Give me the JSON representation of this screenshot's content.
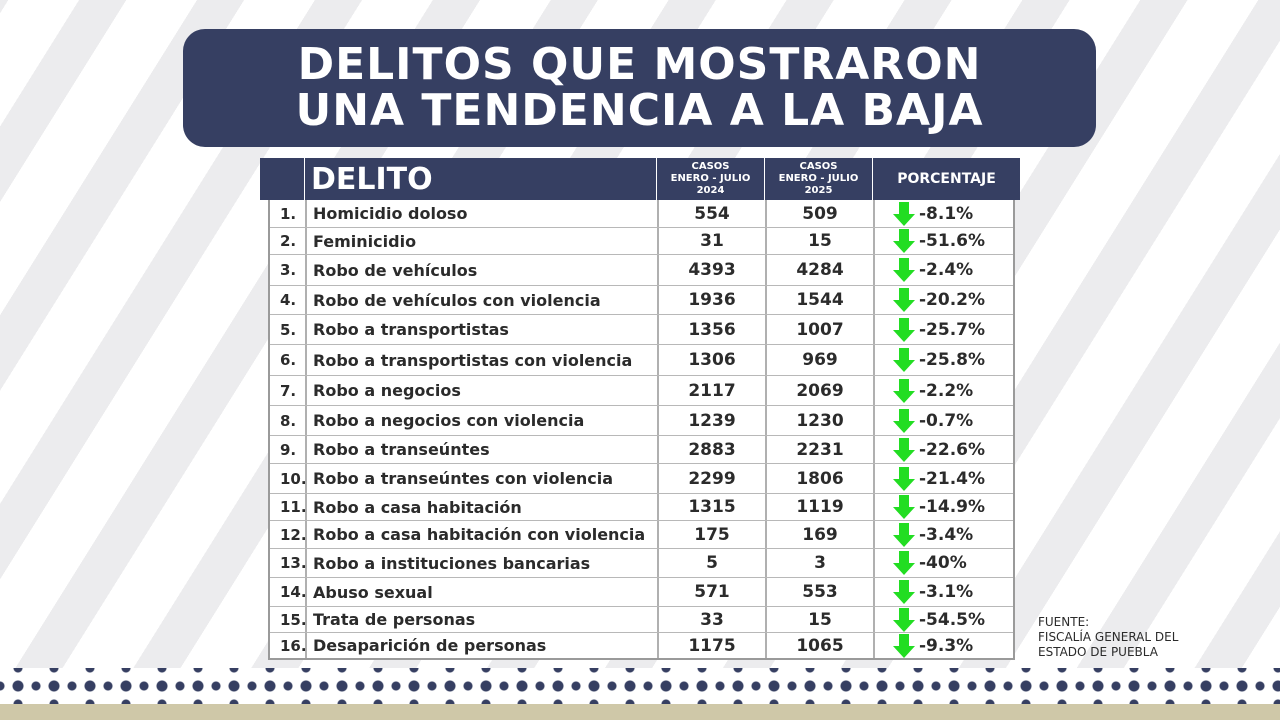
{
  "title": {
    "line1": "DELITOS QUE MOSTRARON",
    "line2": "UNA TENDENCIA A LA BAJA"
  },
  "table": {
    "headers": {
      "delito": "DELITO",
      "casos_2024": "CASOS\nENERO - JULIO\n2024",
      "casos_2025": "CASOS\nENERO - JULIO\n2025",
      "porcentaje": "PORCENTAJE"
    },
    "rows": [
      {
        "num": "1.",
        "name": "Homicidio doloso",
        "y2024": "554",
        "y2025": "509",
        "pct": "-8.1%"
      },
      {
        "num": "2.",
        "name": "Feminicidio",
        "y2024": "31",
        "y2025": "15",
        "pct": "-51.6%"
      },
      {
        "num": "3.",
        "name": "Robo de vehículos",
        "y2024": "4393",
        "y2025": "4284",
        "pct": "-2.4%"
      },
      {
        "num": "4.",
        "name": "Robo de vehículos con violencia",
        "y2024": "1936",
        "y2025": "1544",
        "pct": "-20.2%"
      },
      {
        "num": "5.",
        "name": "Robo a transportistas",
        "y2024": "1356",
        "y2025": "1007",
        "pct": "-25.7%"
      },
      {
        "num": "6.",
        "name": "Robo a transportistas con violencia",
        "y2024": "1306",
        "y2025": "969",
        "pct": "-25.8%"
      },
      {
        "num": "7.",
        "name": "Robo a negocios",
        "y2024": "2117",
        "y2025": "2069",
        "pct": "-2.2%"
      },
      {
        "num": "8.",
        "name": "Robo a negocios con violencia",
        "y2024": "1239",
        "y2025": "1230",
        "pct": "-0.7%"
      },
      {
        "num": "9.",
        "name": "Robo a transeúntes",
        "y2024": "2883",
        "y2025": "2231",
        "pct": "-22.6%"
      },
      {
        "num": "10.",
        "name": "Robo a transeúntes con violencia",
        "y2024": "2299",
        "y2025": "1806",
        "pct": "-21.4%"
      },
      {
        "num": "11.",
        "name": "Robo a casa habitación",
        "y2024": "1315",
        "y2025": "1119",
        "pct": "-14.9%"
      },
      {
        "num": "12.",
        "name": "Robo a casa habitación con violencia",
        "y2024": "175",
        "y2025": "169",
        "pct": "-3.4%"
      },
      {
        "num": "13.",
        "name": "Robo a instituciones bancarias",
        "y2024": "5",
        "y2025": "3",
        "pct": "-40%"
      },
      {
        "num": "14.",
        "name": "Abuso sexual",
        "y2024": "571",
        "y2025": "553",
        "pct": "-3.1%"
      },
      {
        "num": "15.",
        "name": "Trata de personas",
        "y2024": "33",
        "y2025": "15",
        "pct": "-54.5%"
      },
      {
        "num": "16.",
        "name": "Desaparición de personas",
        "y2024": "1175",
        "y2025": "1065",
        "pct": "-9.3%"
      }
    ]
  },
  "source": {
    "label": "FUENTE:",
    "line1": "FISCALÍA GENERAL DEL",
    "line2": "ESTADO DE PUEBLA"
  },
  "icons": {
    "trend": "green-down-arrow-icon"
  },
  "colors": {
    "navy": "#363f62",
    "arrow_green": "#22dd22",
    "footer_tan": "#cfc8a8"
  }
}
